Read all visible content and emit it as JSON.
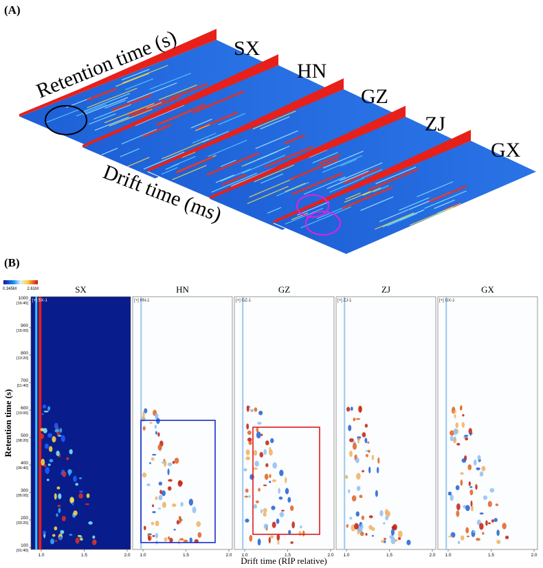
{
  "panel_a": {
    "label": "(A)",
    "retention_label": "Retention time (s)",
    "drift_label": "Drift time (ms)",
    "samples": [
      "SX",
      "HN",
      "GZ",
      "ZJ",
      "GX"
    ]
  },
  "panel_b": {
    "label": "(B)",
    "y_label": "Retention time (s)",
    "x_label": "Drift time (RIP relative)",
    "colorbar": {
      "min": "0.345M",
      "max": "2.61M"
    },
    "panels": [
      {
        "title": "SX",
        "tag": "[+] SX-1"
      },
      {
        "title": "HN",
        "tag": "[+] HN-1"
      },
      {
        "title": "GZ",
        "tag": "[+] GZ-1"
      },
      {
        "title": "ZJ",
        "tag": "[+] ZJ-1"
      },
      {
        "title": "GX",
        "tag": "[+] GX-1"
      }
    ],
    "yticks": [
      {
        "value": "100",
        "time": "[01:40]"
      },
      {
        "value": "200",
        "time": "[03:20]"
      },
      {
        "value": "300",
        "time": "[05:00]"
      },
      {
        "value": "400",
        "time": "[06:40]"
      },
      {
        "value": "500",
        "time": "[08:20]"
      },
      {
        "value": "600",
        "time": "[10:00]"
      },
      {
        "value": "700",
        "time": "[11:40]"
      },
      {
        "value": "800",
        "time": "[13:20]"
      },
      {
        "value": "900",
        "time": "[15:00]"
      },
      {
        "value": "1000",
        "time": "[16:40]"
      }
    ],
    "xticks": [
      "1.0",
      "1.5",
      "2.0"
    ]
  }
}
